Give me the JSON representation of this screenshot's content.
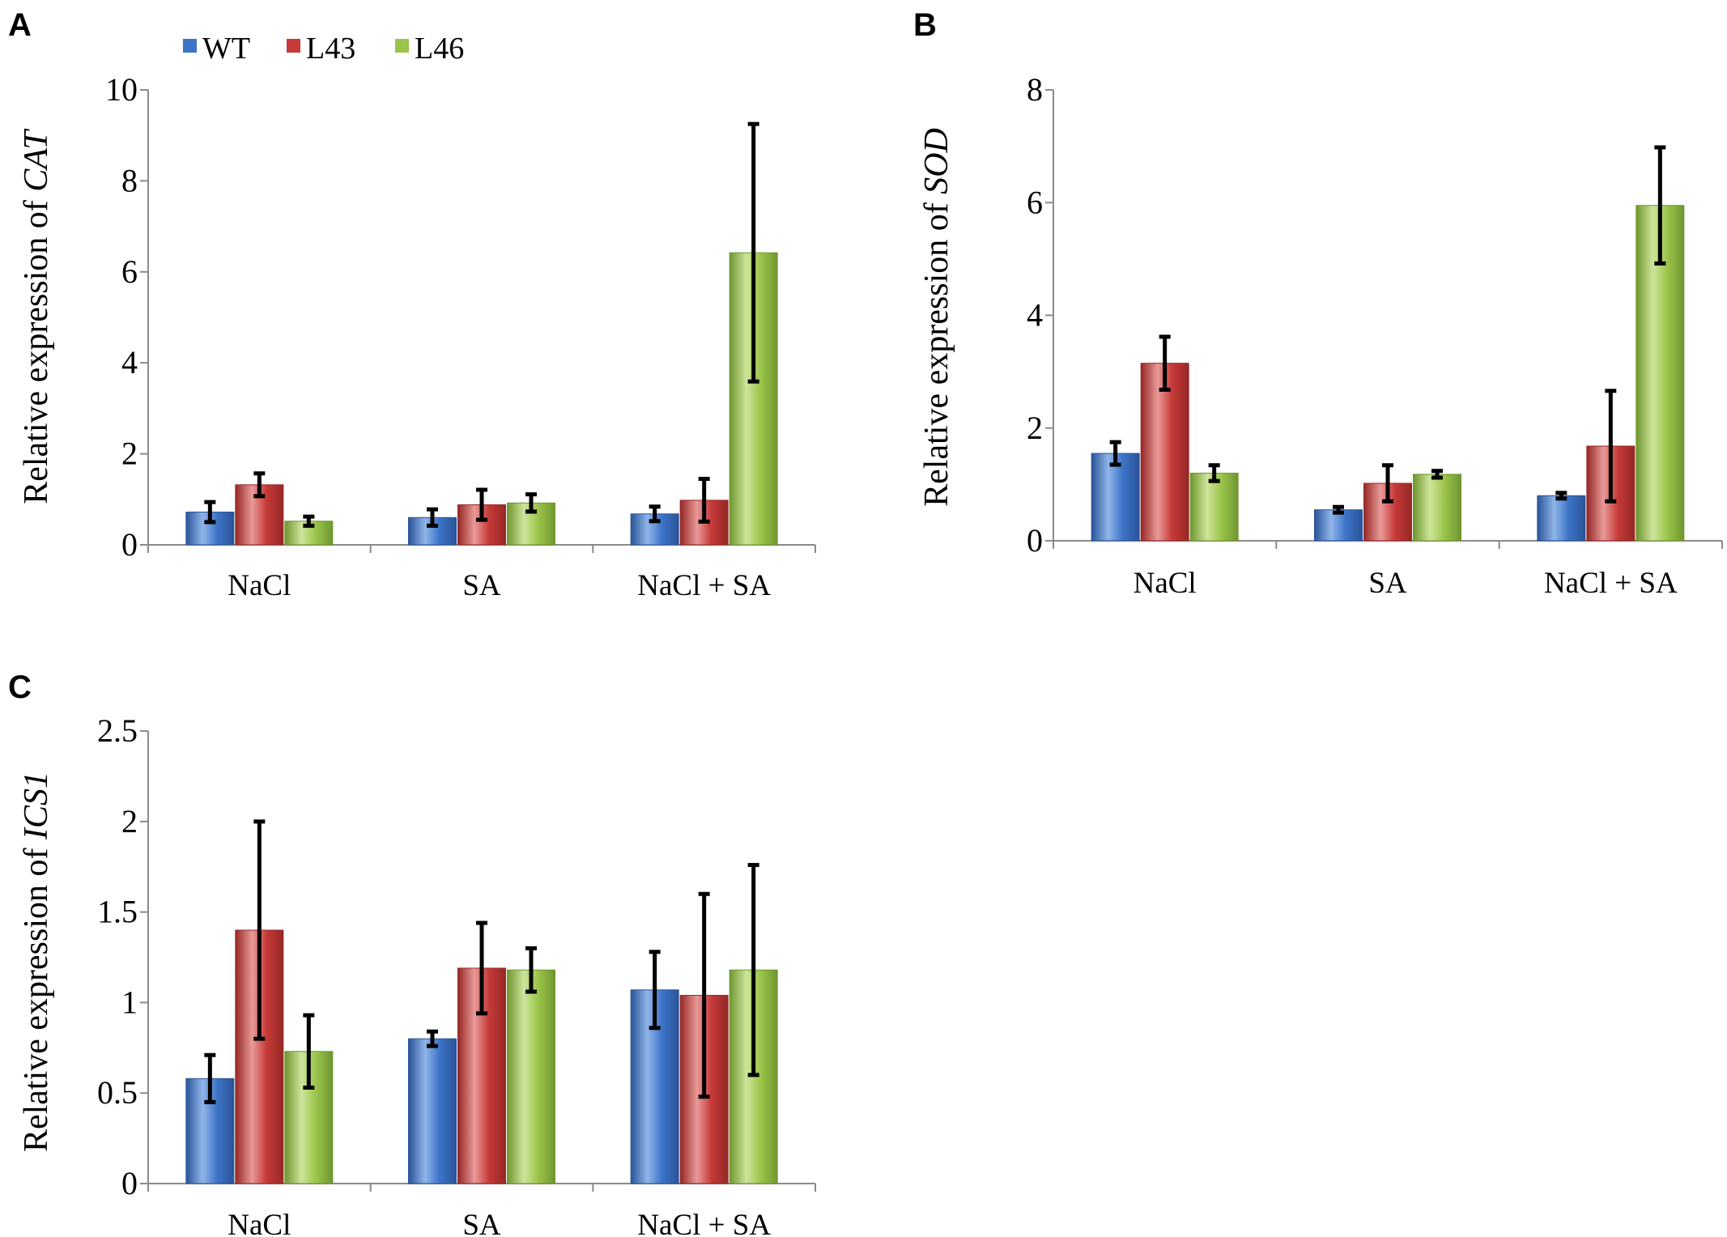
{
  "legend": {
    "items": [
      {
        "label": "WT",
        "color_key": "blue"
      },
      {
        "label": "L43",
        "color_key": "red"
      },
      {
        "label": "L46",
        "color_key": "green"
      }
    ]
  },
  "colors": {
    "blue": {
      "light": "#8fb5e8",
      "base": "#3d74c8",
      "dark": "#2a5499"
    },
    "red": {
      "light": "#e89a98",
      "base": "#c63a38",
      "dark": "#962826"
    },
    "green": {
      "light": "#cde59a",
      "base": "#9bc44a",
      "dark": "#6f9630"
    }
  },
  "chart_data": [
    {
      "panel": "A",
      "type": "bar",
      "ylabel_prefix": "Relative expression of ",
      "ylabel_gene": "CAT",
      "categories": [
        "NaCl",
        "SA",
        "NaCl + SA"
      ],
      "ylim": [
        0,
        10
      ],
      "yticks": [
        "0",
        "2",
        "4",
        "6",
        "8",
        "10"
      ],
      "ytick_values": [
        0,
        2,
        4,
        6,
        8,
        10
      ],
      "series": [
        {
          "name": "WT",
          "values": [
            0.72,
            0.6,
            0.68
          ],
          "errors": [
            0.22,
            0.18,
            0.16
          ]
        },
        {
          "name": "L43",
          "values": [
            1.32,
            0.88,
            0.98
          ],
          "errors": [
            0.25,
            0.33,
            0.47
          ]
        },
        {
          "name": "L46",
          "values": [
            0.52,
            0.92,
            6.42
          ],
          "errors": [
            0.1,
            0.19,
            2.83
          ]
        }
      ]
    },
    {
      "panel": "B",
      "type": "bar",
      "ylabel_prefix": "Relative expression of ",
      "ylabel_gene": "SOD",
      "categories": [
        "NaCl",
        "SA",
        "NaCl + SA"
      ],
      "ylim": [
        0,
        8
      ],
      "yticks": [
        "0",
        "2",
        "4",
        "6",
        "8"
      ],
      "ytick_values": [
        0,
        2,
        4,
        6,
        8
      ],
      "series": [
        {
          "name": "WT",
          "values": [
            1.55,
            0.55,
            0.8
          ],
          "errors": [
            0.2,
            0.05,
            0.05
          ]
        },
        {
          "name": "L43",
          "values": [
            3.15,
            1.02,
            1.68
          ],
          "errors": [
            0.47,
            0.32,
            0.98
          ]
        },
        {
          "name": "L46",
          "values": [
            1.2,
            1.18,
            5.95
          ],
          "errors": [
            0.14,
            0.06,
            1.03
          ]
        }
      ]
    },
    {
      "panel": "C",
      "type": "bar",
      "ylabel_prefix": "Relative expression of ",
      "ylabel_gene": "ICS1",
      "categories": [
        "NaCl",
        "SA",
        "NaCl + SA"
      ],
      "ylim": [
        0,
        2.5
      ],
      "yticks": [
        "0",
        "0.5",
        "1",
        "1.5",
        "2",
        "2.5"
      ],
      "ytick_values": [
        0,
        0.5,
        1,
        1.5,
        2,
        2.5
      ],
      "series": [
        {
          "name": "WT",
          "values": [
            0.58,
            0.8,
            1.07
          ],
          "errors": [
            0.13,
            0.04,
            0.21
          ]
        },
        {
          "name": "L43",
          "values": [
            1.4,
            1.19,
            1.04
          ],
          "errors": [
            0.6,
            0.25,
            0.56
          ]
        },
        {
          "name": "L46",
          "values": [
            0.73,
            1.18,
            1.18
          ],
          "errors": [
            0.2,
            0.12,
            0.58
          ]
        }
      ]
    }
  ]
}
